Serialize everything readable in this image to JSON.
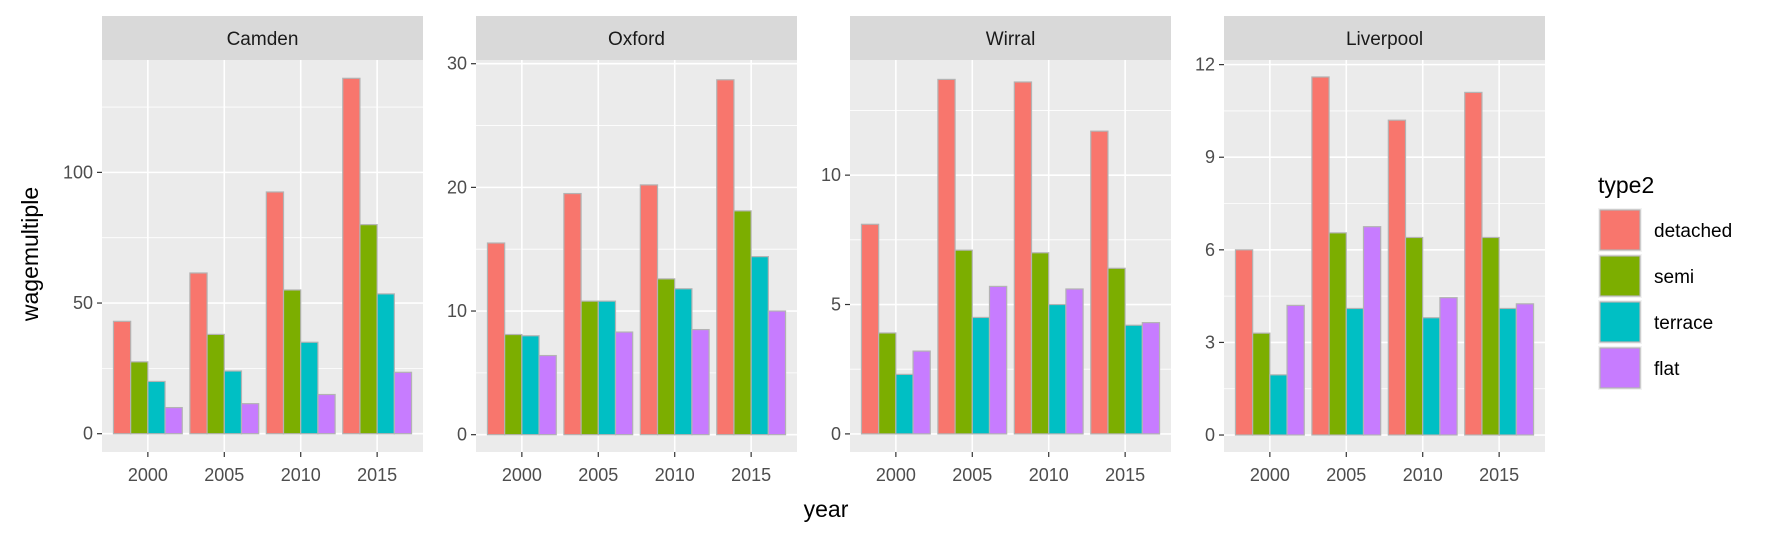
{
  "chart_data": {
    "type": "bar",
    "xlabel": "year",
    "ylabel": "wagemultiple",
    "categories": [
      "2000",
      "2005",
      "2010",
      "2015"
    ],
    "legend": {
      "title": "type2",
      "position": "right",
      "entries": [
        {
          "label": "detached",
          "color": "#F8766D"
        },
        {
          "label": "semi",
          "color": "#7CAE00"
        },
        {
          "label": "terrace",
          "color": "#00BFC4"
        },
        {
          "label": "flat",
          "color": "#C77CFF"
        }
      ]
    },
    "panels": [
      {
        "title": "Camden",
        "ylim": [
          -7,
          143
        ],
        "yticks": [
          0,
          50,
          100
        ],
        "series": [
          {
            "name": "detached",
            "values": [
              43,
              61.5,
              92.5,
              136
            ]
          },
          {
            "name": "semi",
            "values": [
              27.5,
              38,
              55,
              80
            ]
          },
          {
            "name": "terrace",
            "values": [
              20,
              24,
              35,
              53.5
            ]
          },
          {
            "name": "flat",
            "values": [
              10,
              11.5,
              15,
              23.5
            ]
          }
        ]
      },
      {
        "title": "Oxford",
        "ylim": [
          -1.4,
          30.3
        ],
        "yticks": [
          0,
          10,
          20,
          30
        ],
        "series": [
          {
            "name": "detached",
            "values": [
              15.5,
              19.5,
              20.2,
              28.7
            ]
          },
          {
            "name": "semi",
            "values": [
              8.1,
              10.8,
              12.6,
              18.1
            ]
          },
          {
            "name": "terrace",
            "values": [
              8.0,
              10.8,
              11.8,
              14.4
            ]
          },
          {
            "name": "flat",
            "values": [
              6.4,
              8.3,
              8.5,
              10.0
            ]
          }
        ]
      },
      {
        "title": "Wirral",
        "ylim": [
          -0.7,
          14.45
        ],
        "yticks": [
          0,
          5,
          10
        ],
        "series": [
          {
            "name": "detached",
            "values": [
              8.1,
              13.7,
              13.6,
              11.7
            ]
          },
          {
            "name": "semi",
            "values": [
              3.9,
              7.1,
              7.0,
              6.4
            ]
          },
          {
            "name": "terrace",
            "values": [
              2.3,
              4.5,
              5.0,
              4.2
            ]
          },
          {
            "name": "flat",
            "values": [
              3.2,
              5.7,
              5.6,
              4.3
            ]
          }
        ]
      },
      {
        "title": "Liverpool",
        "ylim": [
          -0.55,
          12.15
        ],
        "yticks": [
          0,
          3,
          6,
          9,
          12
        ],
        "series": [
          {
            "name": "detached",
            "values": [
              6.0,
              11.6,
              10.2,
              11.1
            ]
          },
          {
            "name": "semi",
            "values": [
              3.3,
              6.55,
              6.4,
              6.4
            ]
          },
          {
            "name": "terrace",
            "values": [
              1.95,
              4.1,
              3.8,
              4.1
            ]
          },
          {
            "name": "flat",
            "values": [
              4.2,
              6.75,
              4.45,
              4.25
            ]
          }
        ]
      }
    ]
  }
}
